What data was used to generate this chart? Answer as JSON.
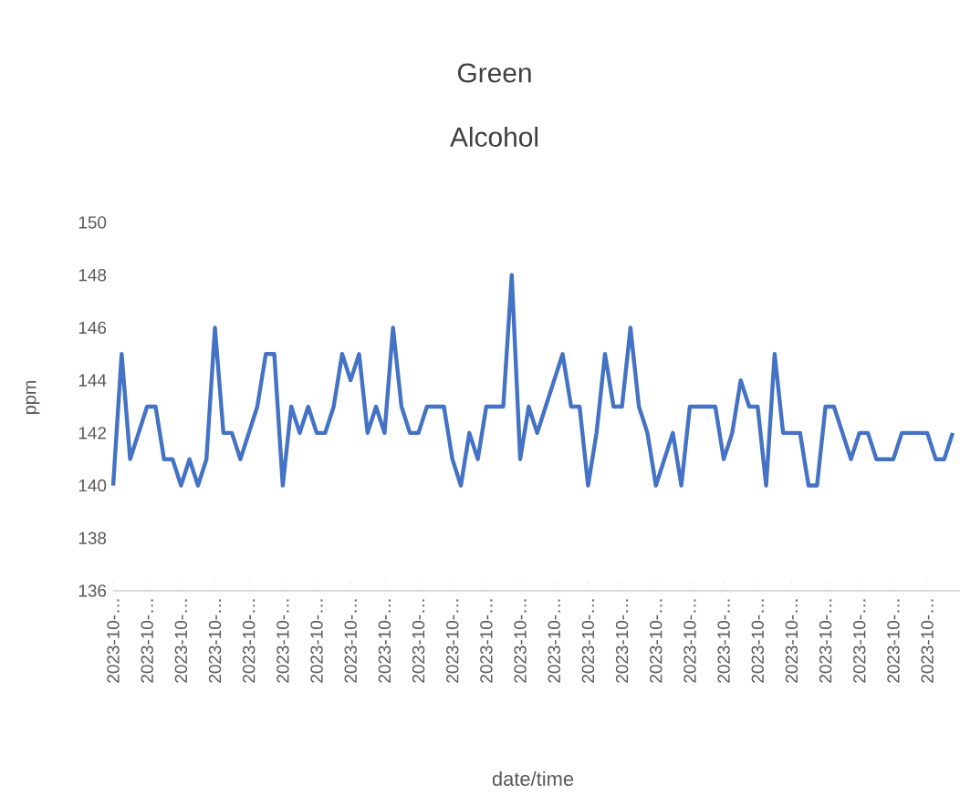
{
  "chart_data": {
    "type": "line",
    "title": "Green",
    "subtitle": "Alcohol",
    "xlabel": "date/time",
    "ylabel": "ppm",
    "categories": [
      "2023-10-…",
      null,
      null,
      null,
      "2023-10-…",
      null,
      null,
      null,
      "2023-10-…",
      null,
      null,
      null,
      "2023-10-…",
      null,
      null,
      null,
      "2023-10-…",
      null,
      null,
      null,
      "2023-10-…",
      null,
      null,
      null,
      "2023-10-…",
      null,
      null,
      null,
      "2023-10-…",
      null,
      null,
      null,
      "2023-10-…",
      null,
      null,
      null,
      "2023-10-…",
      null,
      null,
      null,
      "2023-10-…",
      null,
      null,
      null,
      "2023-10-…",
      null,
      null,
      null,
      "2023-10-…",
      null,
      null,
      null,
      "2023-10-…",
      null,
      null,
      null,
      "2023-10-…",
      null,
      null,
      null,
      "2023-10-…",
      null,
      null,
      null,
      "2023-10-…",
      null,
      null,
      null,
      "2023-10-…",
      null,
      null,
      null,
      "2023-10-…",
      null,
      null,
      null,
      "2023-10-…",
      null,
      null,
      null,
      "2023-10-…",
      null,
      null,
      null,
      "2023-10-…",
      null,
      null,
      null,
      "2023-10-…",
      null,
      null,
      null,
      "2023-10-…",
      null,
      null,
      null,
      "2023-10-…",
      null,
      null,
      null
    ],
    "series": [
      {
        "color": "#4472c4",
        "values": [
          140,
          145,
          141,
          142,
          143,
          143,
          141,
          141,
          140,
          141,
          140,
          141,
          146,
          142,
          142,
          141,
          142,
          143,
          145,
          145,
          140,
          143,
          142,
          143,
          142,
          142,
          143,
          145,
          144,
          145,
          142,
          143,
          142,
          146,
          143,
          142,
          142,
          143,
          143,
          143,
          141,
          140,
          142,
          141,
          143,
          143,
          143,
          148,
          141,
          143,
          142,
          143,
          144,
          145,
          143,
          143,
          140,
          142,
          145,
          143,
          143,
          146,
          143,
          142,
          140,
          141,
          142,
          140,
          143,
          143,
          143,
          143,
          141,
          142,
          144,
          143,
          143,
          140,
          145,
          142,
          142,
          142,
          140,
          140,
          143,
          143,
          142,
          141,
          142,
          142,
          141,
          141,
          141,
          142,
          142,
          142,
          142,
          141,
          141,
          142
        ]
      }
    ],
    "ylim": [
      136,
      150
    ],
    "yticks": [
      136,
      138,
      140,
      142,
      144,
      146,
      148,
      150
    ]
  }
}
